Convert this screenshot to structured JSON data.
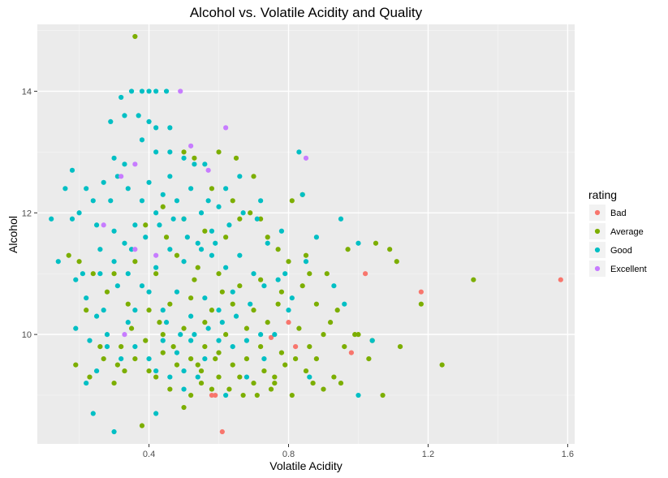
{
  "chart_data": {
    "type": "scatter",
    "title": "Alcohol vs. Volatile Acidity and Quality",
    "xlabel": "Volatile Acidity",
    "ylabel": "Alcohol",
    "xlim": [
      0.08,
      1.62
    ],
    "ylim": [
      8.2,
      15.1
    ],
    "x_ticks": [
      0.4,
      0.8,
      1.2,
      1.6
    ],
    "x_tick_labels": [
      "0.4",
      "0.8",
      "1.2",
      "1.6"
    ],
    "y_ticks": [
      10,
      12,
      14
    ],
    "y_tick_labels": [
      "10",
      "12",
      "14"
    ],
    "grid": true,
    "legend": {
      "title": "rating",
      "position": "right",
      "entries": [
        "Bad",
        "Average",
        "Good",
        "Excellent"
      ]
    },
    "colors": {
      "Bad": "#f8766d",
      "Average": "#7cae00",
      "Good": "#00bfc4",
      "Excellent": "#c77cff",
      "panel": "#ebebeb",
      "grid_major": "#ffffff",
      "grid_minor": "#f5f5f5"
    },
    "series": [
      {
        "name": "Bad",
        "points": [
          [
            0.58,
            9.0
          ],
          [
            0.59,
            9.0
          ],
          [
            0.61,
            8.4
          ],
          [
            0.75,
            9.95
          ],
          [
            0.8,
            10.2
          ],
          [
            0.82,
            9.8
          ],
          [
            0.98,
            9.7
          ],
          [
            1.02,
            11.0
          ],
          [
            1.18,
            10.7
          ],
          [
            1.58,
            10.9
          ]
        ]
      },
      {
        "name": "Average",
        "points": [
          [
            0.36,
            14.9
          ],
          [
            0.5,
            13.0
          ],
          [
            0.53,
            12.9
          ],
          [
            0.6,
            13.0
          ],
          [
            0.65,
            12.9
          ],
          [
            0.7,
            12.6
          ],
          [
            0.81,
            12.2
          ],
          [
            0.84,
            12.3
          ],
          [
            0.66,
            11.9
          ],
          [
            0.72,
            11.9
          ],
          [
            0.77,
            11.4
          ],
          [
            0.85,
            11.3
          ],
          [
            0.91,
            11.0
          ],
          [
            0.97,
            11.4
          ],
          [
            1.05,
            11.5
          ],
          [
            1.09,
            11.4
          ],
          [
            1.11,
            11.2
          ],
          [
            1.33,
            10.9
          ],
          [
            1.18,
            10.5
          ],
          [
            1.0,
            10.0
          ],
          [
            1.04,
            9.9
          ],
          [
            1.12,
            9.8
          ],
          [
            1.24,
            9.5
          ],
          [
            1.07,
            9.0
          ],
          [
            0.95,
            9.2
          ],
          [
            0.9,
            9.1
          ],
          [
            0.87,
            9.2
          ],
          [
            0.5,
            8.8
          ],
          [
            0.38,
            8.5
          ],
          [
            0.22,
            10.4
          ],
          [
            0.19,
            9.5
          ],
          [
            0.3,
            9.2
          ],
          [
            0.33,
            9.4
          ],
          [
            0.27,
            9.6
          ],
          [
            0.42,
            9.3
          ],
          [
            0.46,
            9.1
          ],
          [
            0.52,
            9.0
          ],
          [
            0.55,
            9.2
          ],
          [
            0.6,
            9.3
          ],
          [
            0.63,
            9.1
          ],
          [
            0.66,
            9.3
          ],
          [
            0.7,
            9.2
          ],
          [
            0.73,
            9.4
          ],
          [
            0.76,
            9.3
          ],
          [
            0.79,
            9.5
          ],
          [
            0.82,
            9.6
          ],
          [
            0.85,
            9.4
          ],
          [
            0.88,
            9.6
          ],
          [
            0.78,
            9.7
          ],
          [
            0.72,
            9.8
          ],
          [
            0.68,
            9.6
          ],
          [
            0.64,
            9.5
          ],
          [
            0.6,
            9.7
          ],
          [
            0.56,
            9.8
          ],
          [
            0.52,
            9.6
          ],
          [
            0.48,
            9.5
          ],
          [
            0.44,
            9.7
          ],
          [
            0.4,
            9.4
          ],
          [
            0.36,
            9.6
          ],
          [
            0.32,
            9.8
          ],
          [
            0.44,
            10.0
          ],
          [
            0.5,
            10.1
          ],
          [
            0.56,
            10.2
          ],
          [
            0.62,
            10.0
          ],
          [
            0.68,
            10.1
          ],
          [
            0.74,
            10.2
          ],
          [
            0.7,
            10.4
          ],
          [
            0.64,
            10.5
          ],
          [
            0.58,
            10.4
          ],
          [
            0.52,
            10.6
          ],
          [
            0.46,
            10.5
          ],
          [
            0.4,
            10.4
          ],
          [
            0.34,
            10.5
          ],
          [
            0.28,
            10.7
          ],
          [
            0.3,
            11.0
          ],
          [
            0.36,
            11.2
          ],
          [
            0.42,
            11.0
          ],
          [
            0.48,
            11.3
          ],
          [
            0.54,
            11.1
          ],
          [
            0.6,
            11.0
          ],
          [
            0.66,
            10.8
          ],
          [
            0.72,
            10.9
          ],
          [
            0.78,
            10.7
          ],
          [
            0.84,
            10.8
          ],
          [
            0.88,
            10.5
          ],
          [
            0.92,
            10.2
          ],
          [
            0.62,
            11.6
          ],
          [
            0.56,
            11.7
          ],
          [
            0.5,
            11.9
          ],
          [
            0.44,
            12.1
          ],
          [
            0.58,
            12.4
          ],
          [
            0.64,
            12.2
          ],
          [
            0.69,
            12.0
          ],
          [
            0.74,
            11.6
          ],
          [
            0.8,
            11.2
          ],
          [
            0.86,
            11.0
          ],
          [
            0.9,
            10.0
          ],
          [
            0.94,
            10.4
          ],
          [
            0.96,
            9.8
          ],
          [
            0.99,
            10.0
          ],
          [
            0.67,
            9.0
          ],
          [
            0.71,
            9.0
          ],
          [
            0.75,
            9.1
          ],
          [
            0.55,
            9.4
          ],
          [
            0.59,
            9.6
          ],
          [
            0.47,
            9.8
          ],
          [
            0.43,
            10.2
          ],
          [
            0.39,
            9.9
          ],
          [
            0.35,
            10.1
          ],
          [
            0.31,
            9.5
          ],
          [
            0.26,
            9.8
          ],
          [
            0.23,
            9.3
          ],
          [
            0.2,
            11.2
          ],
          [
            0.24,
            11.0
          ],
          [
            0.17,
            11.3
          ],
          [
            0.45,
            11.6
          ],
          [
            0.39,
            11.8
          ],
          [
            0.53,
            10.9
          ],
          [
            0.61,
            10.7
          ],
          [
            0.77,
            10.5
          ],
          [
            0.83,
            10.1
          ],
          [
            0.86,
            9.8
          ],
          [
            0.93,
            9.3
          ],
          [
            1.03,
            9.6
          ],
          [
            0.81,
            9.0
          ],
          [
            0.76,
            9.2
          ],
          [
            0.58,
            9.1
          ],
          [
            0.54,
            9.5
          ]
        ]
      },
      {
        "name": "Good",
        "points": [
          [
            0.12,
            11.9
          ],
          [
            0.16,
            12.4
          ],
          [
            0.14,
            11.2
          ],
          [
            0.18,
            12.7
          ],
          [
            0.18,
            11.9
          ],
          [
            0.2,
            12.0
          ],
          [
            0.22,
            12.4
          ],
          [
            0.24,
            12.2
          ],
          [
            0.25,
            11.8
          ],
          [
            0.27,
            12.5
          ],
          [
            0.29,
            12.2
          ],
          [
            0.31,
            12.6
          ],
          [
            0.33,
            12.8
          ],
          [
            0.34,
            12.4
          ],
          [
            0.3,
            11.7
          ],
          [
            0.33,
            11.5
          ],
          [
            0.36,
            11.8
          ],
          [
            0.38,
            12.2
          ],
          [
            0.4,
            12.5
          ],
          [
            0.42,
            12.0
          ],
          [
            0.44,
            12.3
          ],
          [
            0.46,
            12.6
          ],
          [
            0.48,
            12.2
          ],
          [
            0.5,
            11.9
          ],
          [
            0.52,
            12.4
          ],
          [
            0.55,
            12.0
          ],
          [
            0.58,
            11.7
          ],
          [
            0.6,
            12.1
          ],
          [
            0.35,
            14.0
          ],
          [
            0.38,
            14.0
          ],
          [
            0.4,
            14.0
          ],
          [
            0.42,
            14.0
          ],
          [
            0.45,
            14.0
          ],
          [
            0.32,
            13.9
          ],
          [
            0.33,
            13.6
          ],
          [
            0.37,
            13.6
          ],
          [
            0.4,
            13.5
          ],
          [
            0.42,
            13.4
          ],
          [
            0.46,
            13.4
          ],
          [
            0.29,
            13.5
          ],
          [
            0.38,
            13.2
          ],
          [
            0.42,
            13.0
          ],
          [
            0.46,
            13.0
          ],
          [
            0.5,
            12.9
          ],
          [
            0.56,
            12.8
          ],
          [
            0.34,
            10.2
          ],
          [
            0.28,
            10.0
          ],
          [
            0.25,
            10.3
          ],
          [
            0.22,
            10.6
          ],
          [
            0.26,
            11.0
          ],
          [
            0.3,
            11.2
          ],
          [
            0.34,
            11.0
          ],
          [
            0.38,
            10.8
          ],
          [
            0.42,
            11.1
          ],
          [
            0.46,
            11.4
          ],
          [
            0.5,
            11.2
          ],
          [
            0.54,
            11.5
          ],
          [
            0.58,
            11.3
          ],
          [
            0.62,
            11.1
          ],
          [
            0.66,
            11.3
          ],
          [
            0.7,
            11.0
          ],
          [
            0.74,
            11.5
          ],
          [
            0.78,
            11.7
          ],
          [
            0.36,
            10.4
          ],
          [
            0.4,
            10.7
          ],
          [
            0.44,
            10.4
          ],
          [
            0.48,
            10.7
          ],
          [
            0.52,
            10.3
          ],
          [
            0.56,
            10.6
          ],
          [
            0.6,
            10.4
          ],
          [
            0.64,
            10.7
          ],
          [
            0.36,
            9.8
          ],
          [
            0.4,
            9.6
          ],
          [
            0.44,
            9.9
          ],
          [
            0.48,
            9.7
          ],
          [
            0.52,
            9.9
          ],
          [
            0.56,
            9.6
          ],
          [
            0.6,
            9.9
          ],
          [
            0.64,
            9.8
          ],
          [
            0.68,
            9.9
          ],
          [
            0.72,
            10.0
          ],
          [
            0.42,
            9.4
          ],
          [
            0.46,
            9.3
          ],
          [
            0.5,
            9.4
          ],
          [
            0.54,
            9.3
          ],
          [
            0.32,
            9.6
          ],
          [
            0.28,
            9.8
          ],
          [
            0.25,
            9.4
          ],
          [
            0.22,
            9.2
          ],
          [
            0.24,
            8.7
          ],
          [
            0.3,
            8.4
          ],
          [
            0.42,
            8.7
          ],
          [
            0.5,
            9.1
          ],
          [
            0.62,
            9.0
          ],
          [
            0.68,
            9.3
          ],
          [
            0.84,
            12.3
          ],
          [
            0.83,
            13.0
          ],
          [
            0.88,
            11.6
          ],
          [
            0.95,
            11.9
          ],
          [
            1.0,
            11.5
          ],
          [
            0.93,
            10.8
          ],
          [
            0.85,
            11.2
          ],
          [
            0.8,
            10.4
          ],
          [
            0.76,
            10.0
          ],
          [
            0.73,
            9.6
          ],
          [
            0.86,
            9.3
          ],
          [
            1.0,
            9.0
          ],
          [
            1.04,
            9.9
          ],
          [
            0.96,
            10.5
          ],
          [
            0.79,
            11.0
          ],
          [
            0.72,
            12.2
          ],
          [
            0.66,
            12.6
          ],
          [
            0.62,
            12.4
          ],
          [
            0.57,
            12.2
          ],
          [
            0.53,
            12.8
          ],
          [
            0.3,
            12.9
          ],
          [
            0.26,
            11.4
          ],
          [
            0.21,
            11.0
          ],
          [
            0.19,
            10.9
          ],
          [
            0.19,
            10.1
          ],
          [
            0.23,
            9.9
          ],
          [
            0.27,
            10.4
          ],
          [
            0.31,
            10.8
          ],
          [
            0.35,
            11.4
          ],
          [
            0.39,
            11.6
          ],
          [
            0.43,
            11.8
          ],
          [
            0.47,
            11.9
          ],
          [
            0.51,
            11.6
          ],
          [
            0.55,
            11.4
          ],
          [
            0.59,
            11.5
          ],
          [
            0.63,
            11.8
          ],
          [
            0.67,
            12.0
          ],
          [
            0.71,
            11.9
          ],
          [
            0.45,
            10.2
          ],
          [
            0.49,
            10.0
          ],
          [
            0.53,
            10.0
          ],
          [
            0.57,
            10.1
          ],
          [
            0.61,
            10.2
          ],
          [
            0.65,
            10.3
          ],
          [
            0.69,
            10.5
          ],
          [
            0.73,
            10.8
          ],
          [
            0.77,
            10.9
          ],
          [
            0.81,
            10.6
          ]
        ]
      },
      {
        "name": "Excellent",
        "points": [
          [
            0.49,
            14.0
          ],
          [
            0.62,
            13.4
          ],
          [
            0.52,
            13.1
          ],
          [
            0.85,
            12.9
          ],
          [
            0.36,
            12.8
          ],
          [
            0.32,
            12.6
          ],
          [
            0.57,
            12.7
          ],
          [
            0.27,
            11.8
          ],
          [
            0.36,
            11.4
          ],
          [
            0.42,
            11.3
          ],
          [
            0.33,
            10.0
          ]
        ]
      }
    ]
  }
}
